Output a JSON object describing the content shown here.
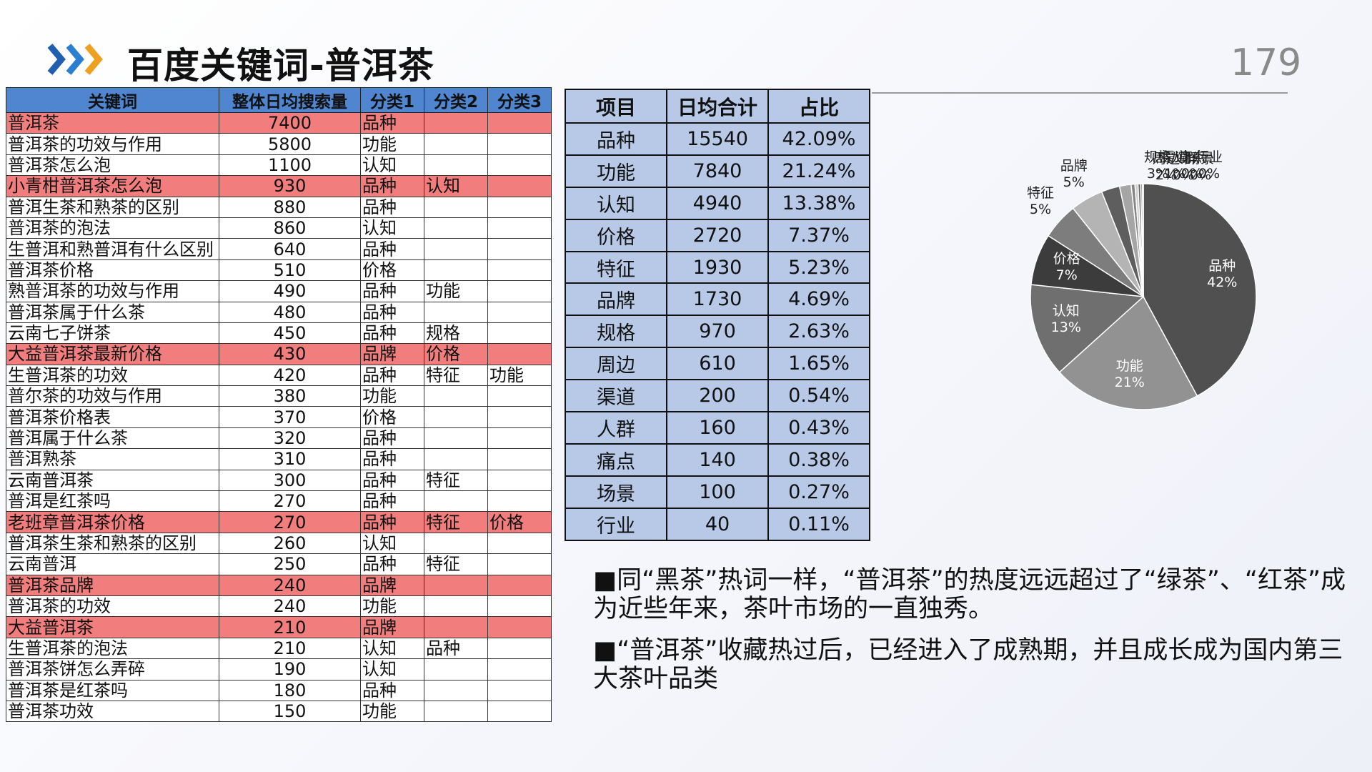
{
  "page": {
    "title": "百度关键词-普洱茶",
    "page_number": "179"
  },
  "keyword_table": {
    "headers": [
      "关键词",
      "整体日均搜索量",
      "分类1",
      "分类2",
      "分类3"
    ],
    "highlight_color": "#f27d7d",
    "header_color": "#4f86cf",
    "rows": [
      {
        "kw": "普洱茶",
        "vol": "7400",
        "c1": "品种",
        "c2": "",
        "c3": "",
        "hl": true
      },
      {
        "kw": "普洱茶的功效与作用",
        "vol": "5800",
        "c1": "功能",
        "c2": "",
        "c3": "",
        "hl": false
      },
      {
        "kw": "普洱茶怎么泡",
        "vol": "1100",
        "c1": "认知",
        "c2": "",
        "c3": "",
        "hl": false
      },
      {
        "kw": "小青柑普洱茶怎么泡",
        "vol": "930",
        "c1": "品种",
        "c2": "认知",
        "c3": "",
        "hl": true
      },
      {
        "kw": "普洱生茶和熟茶的区别",
        "vol": "880",
        "c1": "品种",
        "c2": "",
        "c3": "",
        "hl": false
      },
      {
        "kw": "普洱茶的泡法",
        "vol": "860",
        "c1": "认知",
        "c2": "",
        "c3": "",
        "hl": false
      },
      {
        "kw": "生普洱和熟普洱有什么区别",
        "vol": "640",
        "c1": "品种",
        "c2": "",
        "c3": "",
        "hl": false
      },
      {
        "kw": "普洱茶价格",
        "vol": "510",
        "c1": "价格",
        "c2": "",
        "c3": "",
        "hl": false
      },
      {
        "kw": "熟普洱茶的功效与作用",
        "vol": "490",
        "c1": "品种",
        "c2": "功能",
        "c3": "",
        "hl": false
      },
      {
        "kw": "普洱茶属于什么茶",
        "vol": "480",
        "c1": "品种",
        "c2": "",
        "c3": "",
        "hl": false
      },
      {
        "kw": "云南七子饼茶",
        "vol": "450",
        "c1": "品种",
        "c2": "规格",
        "c3": "",
        "hl": false
      },
      {
        "kw": "大益普洱茶最新价格",
        "vol": "430",
        "c1": "品牌",
        "c2": "价格",
        "c3": "",
        "hl": true
      },
      {
        "kw": "生普洱茶的功效",
        "vol": "420",
        "c1": "品种",
        "c2": "特征",
        "c3": "功能",
        "hl": false
      },
      {
        "kw": "普尔茶的功效与作用",
        "vol": "380",
        "c1": "功能",
        "c2": "",
        "c3": "",
        "hl": false
      },
      {
        "kw": "普洱茶价格表",
        "vol": "370",
        "c1": "价格",
        "c2": "",
        "c3": "",
        "hl": false
      },
      {
        "kw": "普洱属于什么茶",
        "vol": "320",
        "c1": "品种",
        "c2": "",
        "c3": "",
        "hl": false
      },
      {
        "kw": "普洱熟茶",
        "vol": "310",
        "c1": "品种",
        "c2": "",
        "c3": "",
        "hl": false
      },
      {
        "kw": "云南普洱茶",
        "vol": "300",
        "c1": "品种",
        "c2": "特征",
        "c3": "",
        "hl": false
      },
      {
        "kw": "普洱是红茶吗",
        "vol": "270",
        "c1": "品种",
        "c2": "",
        "c3": "",
        "hl": false
      },
      {
        "kw": "老班章普洱茶价格",
        "vol": "270",
        "c1": "品种",
        "c2": "特征",
        "c3": "价格",
        "hl": true
      },
      {
        "kw": "普洱茶生茶和熟茶的区别",
        "vol": "260",
        "c1": "认知",
        "c2": "",
        "c3": "",
        "hl": false
      },
      {
        "kw": "云南普洱",
        "vol": "250",
        "c1": "品种",
        "c2": "特征",
        "c3": "",
        "hl": false
      },
      {
        "kw": "普洱茶品牌",
        "vol": "240",
        "c1": "品牌",
        "c2": "",
        "c3": "",
        "hl": true
      },
      {
        "kw": "普洱茶的功效",
        "vol": "240",
        "c1": "功能",
        "c2": "",
        "c3": "",
        "hl": false
      },
      {
        "kw": "大益普洱茶",
        "vol": "210",
        "c1": "品牌",
        "c2": "",
        "c3": "",
        "hl": true
      },
      {
        "kw": "生普洱茶的泡法",
        "vol": "210",
        "c1": "认知",
        "c2": "品种",
        "c3": "",
        "hl": false
      },
      {
        "kw": "普洱茶饼怎么弄碎",
        "vol": "190",
        "c1": "认知",
        "c2": "",
        "c3": "",
        "hl": false
      },
      {
        "kw": "普洱茶是红茶吗",
        "vol": "180",
        "c1": "品种",
        "c2": "",
        "c3": "",
        "hl": false
      },
      {
        "kw": "普洱茶功效",
        "vol": "150",
        "c1": "功能",
        "c2": "",
        "c3": "",
        "hl": false
      }
    ]
  },
  "summary_table": {
    "headers": [
      "项目",
      "日均合计",
      "占比"
    ],
    "fill_color": "#b7c9e6",
    "rows": [
      {
        "item": "品种",
        "total": "15540",
        "share": "42.09%"
      },
      {
        "item": "功能",
        "total": "7840",
        "share": "21.24%"
      },
      {
        "item": "认知",
        "total": "4940",
        "share": "13.38%"
      },
      {
        "item": "价格",
        "total": "2720",
        "share": "7.37%"
      },
      {
        "item": "特征",
        "total": "1930",
        "share": "5.23%"
      },
      {
        "item": "品牌",
        "total": "1730",
        "share": "4.69%"
      },
      {
        "item": "规格",
        "total": "970",
        "share": "2.63%"
      },
      {
        "item": "周边",
        "total": "610",
        "share": "1.65%"
      },
      {
        "item": "渠道",
        "total": "200",
        "share": "0.54%"
      },
      {
        "item": "人群",
        "total": "160",
        "share": "0.43%"
      },
      {
        "item": "痛点",
        "total": "140",
        "share": "0.38%"
      },
      {
        "item": "场景",
        "total": "100",
        "share": "0.27%"
      },
      {
        "item": "行业",
        "total": "40",
        "share": "0.11%"
      }
    ]
  },
  "chart_data": {
    "type": "pie",
    "title": "",
    "categories": [
      "品种",
      "功能",
      "认知",
      "价格",
      "特征",
      "品牌",
      "规格",
      "周边",
      "渠道",
      "人群",
      "痛点",
      "场景",
      "行业"
    ],
    "values": [
      15540,
      7840,
      4940,
      2720,
      1930,
      1730,
      970,
      610,
      200,
      160,
      140,
      100,
      40
    ],
    "labels": [
      "42%",
      "21%",
      "13%",
      "7%",
      "5%",
      "5%",
      "3%",
      "2%",
      "1%",
      "0%",
      "0%",
      "0%",
      "0%"
    ],
    "colors": [
      "#505050",
      "#929292",
      "#6f6f6f",
      "#3c3c3c",
      "#7d7d7d",
      "#b4b4b4",
      "#5e5e5e",
      "#a6a6a6",
      "#848484",
      "#cccccc",
      "#6a6a6a",
      "#999999",
      "#dddddd"
    ]
  },
  "bullets": [
    "■同“黑茶”热词一样，“普洱茶”的热度远远超过了“绿茶”、“红茶”成为近些年来，茶叶市场的一直独秀。",
    "■“普洱茶”收藏热过后，已经进入了成熟期，并且成长成为国内第三大茶叶品类"
  ]
}
